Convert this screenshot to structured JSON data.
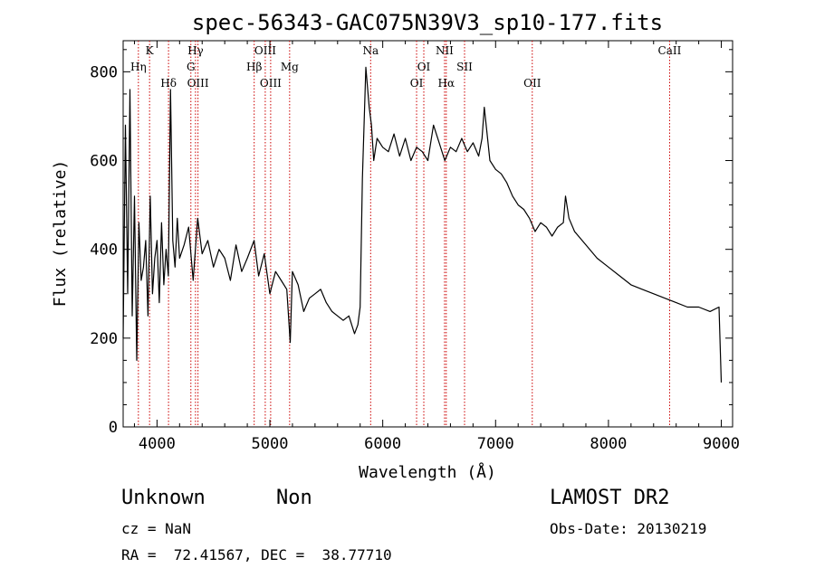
{
  "chart_data": {
    "type": "line",
    "title": "spec-56343-GAC075N39V3_sp10-177.fits",
    "xlabel": "Wavelength (Å)",
    "ylabel": "Flux (relative)",
    "xlim": [
      3700,
      9100
    ],
    "ylim": [
      0,
      870
    ],
    "xticks": [
      4000,
      5000,
      6000,
      7000,
      8000,
      9000
    ],
    "yticks": [
      0,
      200,
      400,
      600,
      800
    ],
    "grid": false,
    "line_color": "#000000",
    "marker_color": "#cc0000",
    "series": [
      {
        "x": [
          3700,
          3720,
          3740,
          3760,
          3780,
          3800,
          3820,
          3840,
          3860,
          3880,
          3900,
          3920,
          3940,
          3960,
          3980,
          4000,
          4020,
          4040,
          4060,
          4080,
          4100,
          4120,
          4140,
          4160,
          4180,
          4200,
          4240,
          4280,
          4320,
          4360,
          4400,
          4450,
          4500,
          4550,
          4600,
          4650,
          4700,
          4750,
          4800,
          4860,
          4900,
          4950,
          5000,
          5050,
          5100,
          5150,
          5180,
          5200,
          5250,
          5300,
          5350,
          5400,
          5450,
          5500,
          5550,
          5600,
          5650,
          5700,
          5750,
          5780,
          5800,
          5820,
          5850,
          5880,
          5900,
          5920,
          5950,
          6000,
          6050,
          6100,
          6150,
          6200,
          6250,
          6300,
          6350,
          6400,
          6450,
          6500,
          6550,
          6600,
          6650,
          6700,
          6750,
          6800,
          6850,
          6880,
          6900,
          6950,
          7000,
          7050,
          7100,
          7150,
          7200,
          7250,
          7300,
          7350,
          7400,
          7450,
          7500,
          7550,
          7600,
          7620,
          7650,
          7700,
          7800,
          7900,
          8000,
          8100,
          8200,
          8300,
          8400,
          8500,
          8600,
          8700,
          8800,
          8900,
          8980,
          9000
        ],
        "y": [
          200,
          680,
          300,
          760,
          250,
          520,
          150,
          460,
          330,
          360,
          420,
          250,
          520,
          300,
          380,
          420,
          280,
          460,
          320,
          400,
          340,
          760,
          420,
          360,
          470,
          380,
          410,
          450,
          330,
          470,
          390,
          420,
          360,
          400,
          380,
          330,
          410,
          350,
          380,
          420,
          340,
          390,
          300,
          350,
          330,
          310,
          190,
          350,
          320,
          260,
          290,
          300,
          310,
          280,
          260,
          250,
          240,
          250,
          210,
          230,
          270,
          560,
          810,
          720,
          680,
          600,
          650,
          630,
          620,
          660,
          610,
          650,
          600,
          630,
          620,
          600,
          680,
          640,
          600,
          630,
          620,
          650,
          620,
          640,
          610,
          650,
          720,
          600,
          580,
          570,
          550,
          520,
          500,
          490,
          470,
          440,
          460,
          450,
          430,
          450,
          460,
          520,
          470,
          440,
          410,
          380,
          360,
          340,
          320,
          310,
          300,
          290,
          280,
          270,
          270,
          260,
          270,
          100
        ]
      }
    ],
    "line_markers": [
      {
        "wavelength": 3835,
        "label": "Hη",
        "row": 2
      },
      {
        "wavelength": 3934,
        "label": "K",
        "row": 1
      },
      {
        "wavelength": 4102,
        "label": "Hδ",
        "row": 3
      },
      {
        "wavelength": 4300,
        "label": "G",
        "row": 2
      },
      {
        "wavelength": 4341,
        "label": "Hγ",
        "row": 1
      },
      {
        "wavelength": 4363,
        "label": "OIII",
        "row": 3
      },
      {
        "wavelength": 4861,
        "label": "Hβ",
        "row": 2
      },
      {
        "wavelength": 4959,
        "label": "OIII",
        "row": 1
      },
      {
        "wavelength": 5007,
        "label": "OIII",
        "row": 3
      },
      {
        "wavelength": 5175,
        "label": "Mg",
        "row": 2
      },
      {
        "wavelength": 5893,
        "label": "Na",
        "row": 1
      },
      {
        "wavelength": 6300,
        "label": "OI",
        "row": 3
      },
      {
        "wavelength": 6364,
        "label": "OI",
        "row": 2
      },
      {
        "wavelength": 6548,
        "label": "NII",
        "row": 1
      },
      {
        "wavelength": 6563,
        "label": "Hα",
        "row": 3
      },
      {
        "wavelength": 6725,
        "label": "SII",
        "row": 2
      },
      {
        "wavelength": 7325,
        "label": "OII",
        "row": 3
      },
      {
        "wavelength": 8542,
        "label": "CaII",
        "row": 1
      }
    ]
  },
  "info": {
    "object_class": "Unknown",
    "object_subclass": "Non",
    "survey": "LAMOST DR2",
    "redshift": "cz = NaN",
    "obs_date": "Obs-Date: 20130219",
    "coords": "RA =  72.41567, DEC =  38.77710"
  }
}
